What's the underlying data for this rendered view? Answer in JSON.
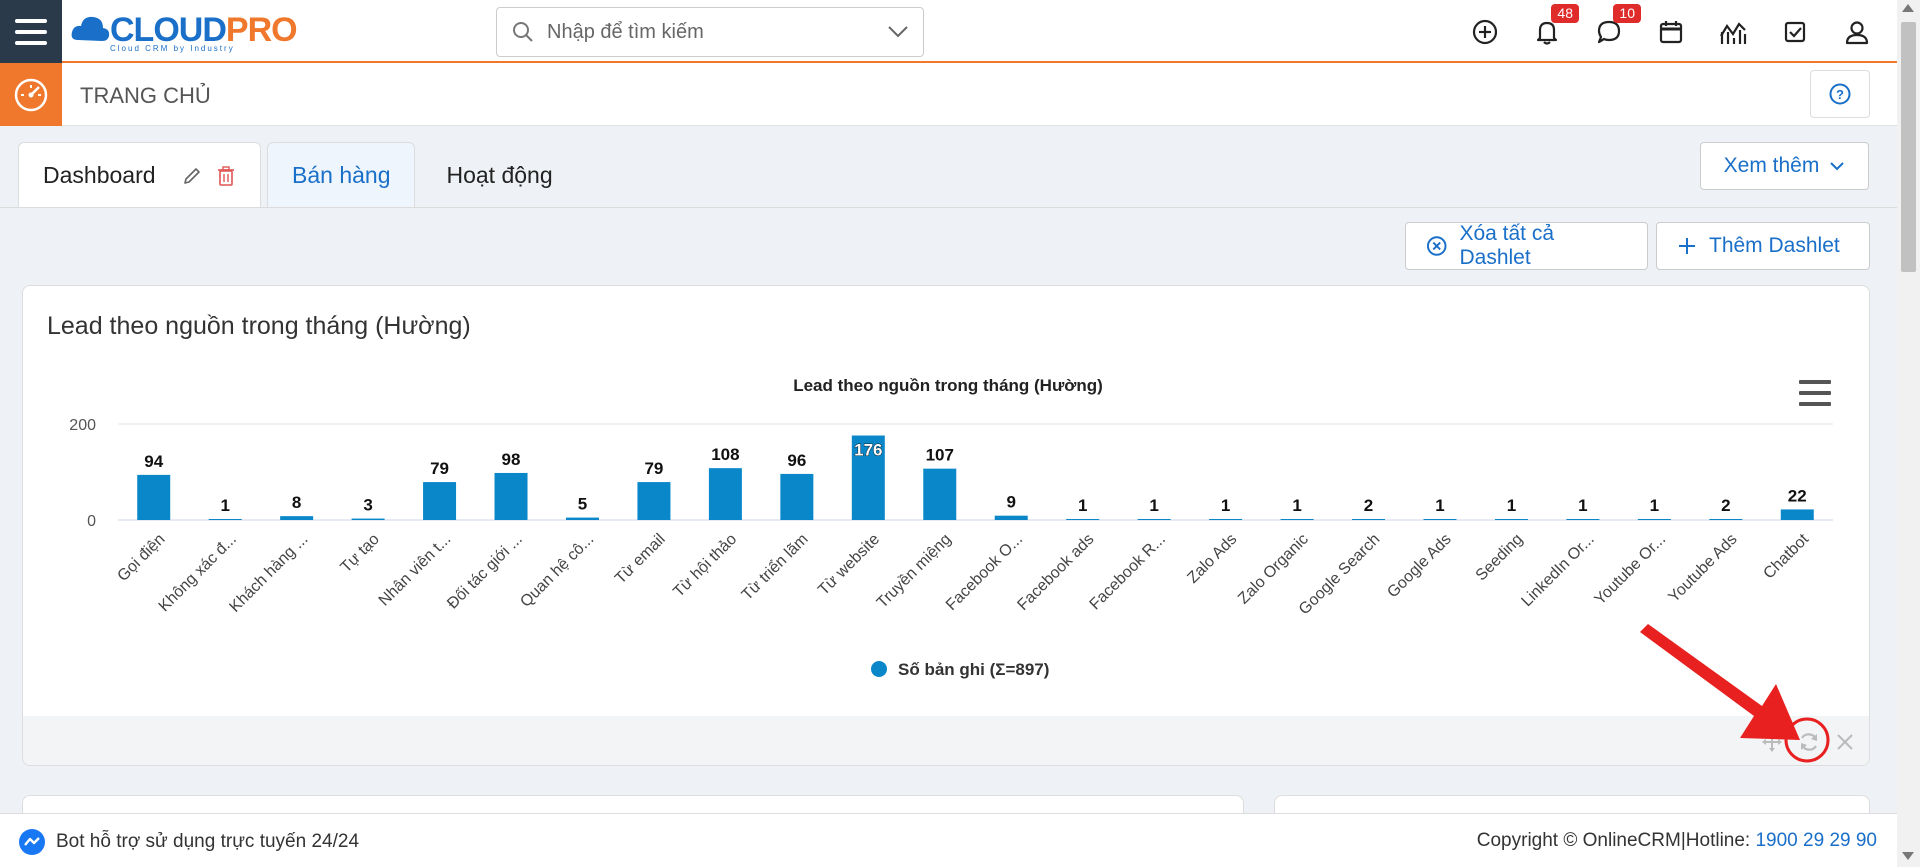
{
  "topbar": {
    "logo_main": "CLOUD",
    "logo_accent": "PRO",
    "logo_tagline": "Cloud CRM by Industry",
    "search_placeholder": "Nhập để tìm kiếm",
    "notifications_count": "48",
    "messages_count": "10"
  },
  "subbar": {
    "page_title": "TRANG CHỦ"
  },
  "tabs": [
    {
      "label": "Dashboard"
    },
    {
      "label": "Bán hàng"
    },
    {
      "label": "Hoạt động"
    }
  ],
  "toolbar": {
    "more_label": "Xem thêm",
    "clear_all_label": "Xóa tất cả Dashlet",
    "add_label": "Thêm Dashlet"
  },
  "dashlet": {
    "title": "Lead theo nguồn trong tháng (Hường)"
  },
  "chart_data": {
    "type": "bar",
    "title": "Lead theo nguồn trong tháng (Hường)",
    "categories": [
      "Gọi điện",
      "Không xác đ...",
      "Khách hàng ...",
      "Tự tạo",
      "Nhân viên t...",
      "Đối tác giới ...",
      "Quan hệ cô...",
      "Từ email",
      "Từ hội thảo",
      "Từ triển lãm",
      "Từ website",
      "Truyền miệng",
      "Facebook O...",
      "Facebook ads",
      "Facebook R...",
      "Zalo Ads",
      "Zalo Organic",
      "Google Search",
      "Google Ads",
      "Seeding",
      "LinkedIn Or...",
      "Youtube Or...",
      "Youtube Ads",
      "Chatbot"
    ],
    "series": [
      {
        "name": "Số bản ghi (Σ=897)",
        "values": [
          94,
          1,
          8,
          3,
          79,
          98,
          5,
          79,
          108,
          96,
          176,
          107,
          9,
          1,
          1,
          1,
          1,
          2,
          1,
          1,
          1,
          1,
          2,
          22
        ]
      }
    ],
    "yticks": [
      0,
      200
    ],
    "ylim": [
      0,
      200
    ],
    "grid": true,
    "legend_position": "bottom-center",
    "color": "#0a87c9"
  },
  "statusbar": {
    "bot_text": "Bot hỗ trợ sử dụng trực tuyến 24/24",
    "copyright": "Copyright © OnlineCRM",
    "separator": "|",
    "hotline_label": "Hotline: ",
    "hotline_number": "1900 29 29 90"
  }
}
